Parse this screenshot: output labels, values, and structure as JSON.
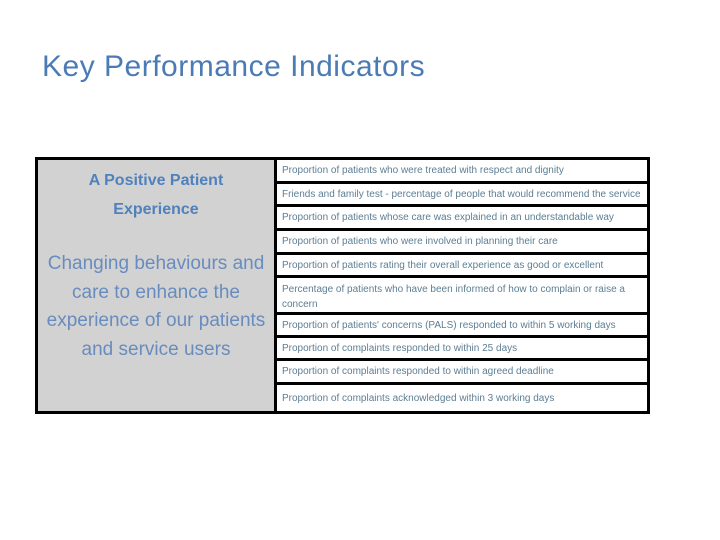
{
  "slide": {
    "title": "Key Performance Indicators"
  },
  "table": {
    "category": {
      "heading": "A Positive Patient Experience",
      "description": "Changing behaviours and care to enhance the experience of our patients and service users"
    },
    "indicators": [
      "Proportion of patients who were treated with respect and dignity",
      "Friends and family test - percentage of people that would recommend the service",
      "Proportion of patients whose care was explained in an understandable way",
      "Proportion of patients who were involved in planning their care",
      "Proportion of patients rating their overall experience as good or excellent",
      "Percentage of patients who have been informed of how to complain or raise a concern",
      "Proportion of patients' concerns (PALS) responded to within 5 working days",
      "Proportion of complaints responded to within 25 days",
      "Proportion of complaints responded to within agreed deadline",
      "Proportion of complaints acknowledged within 3 working days"
    ]
  },
  "colors": {
    "title_text": "#4b7bb5",
    "category_heading_text": "#4f81bd",
    "category_description_text": "#688cbd",
    "indicator_text": "#5d7e93",
    "category_background": "#d2d2d2",
    "table_border": "#000000",
    "slide_background": "#ffffff"
  }
}
